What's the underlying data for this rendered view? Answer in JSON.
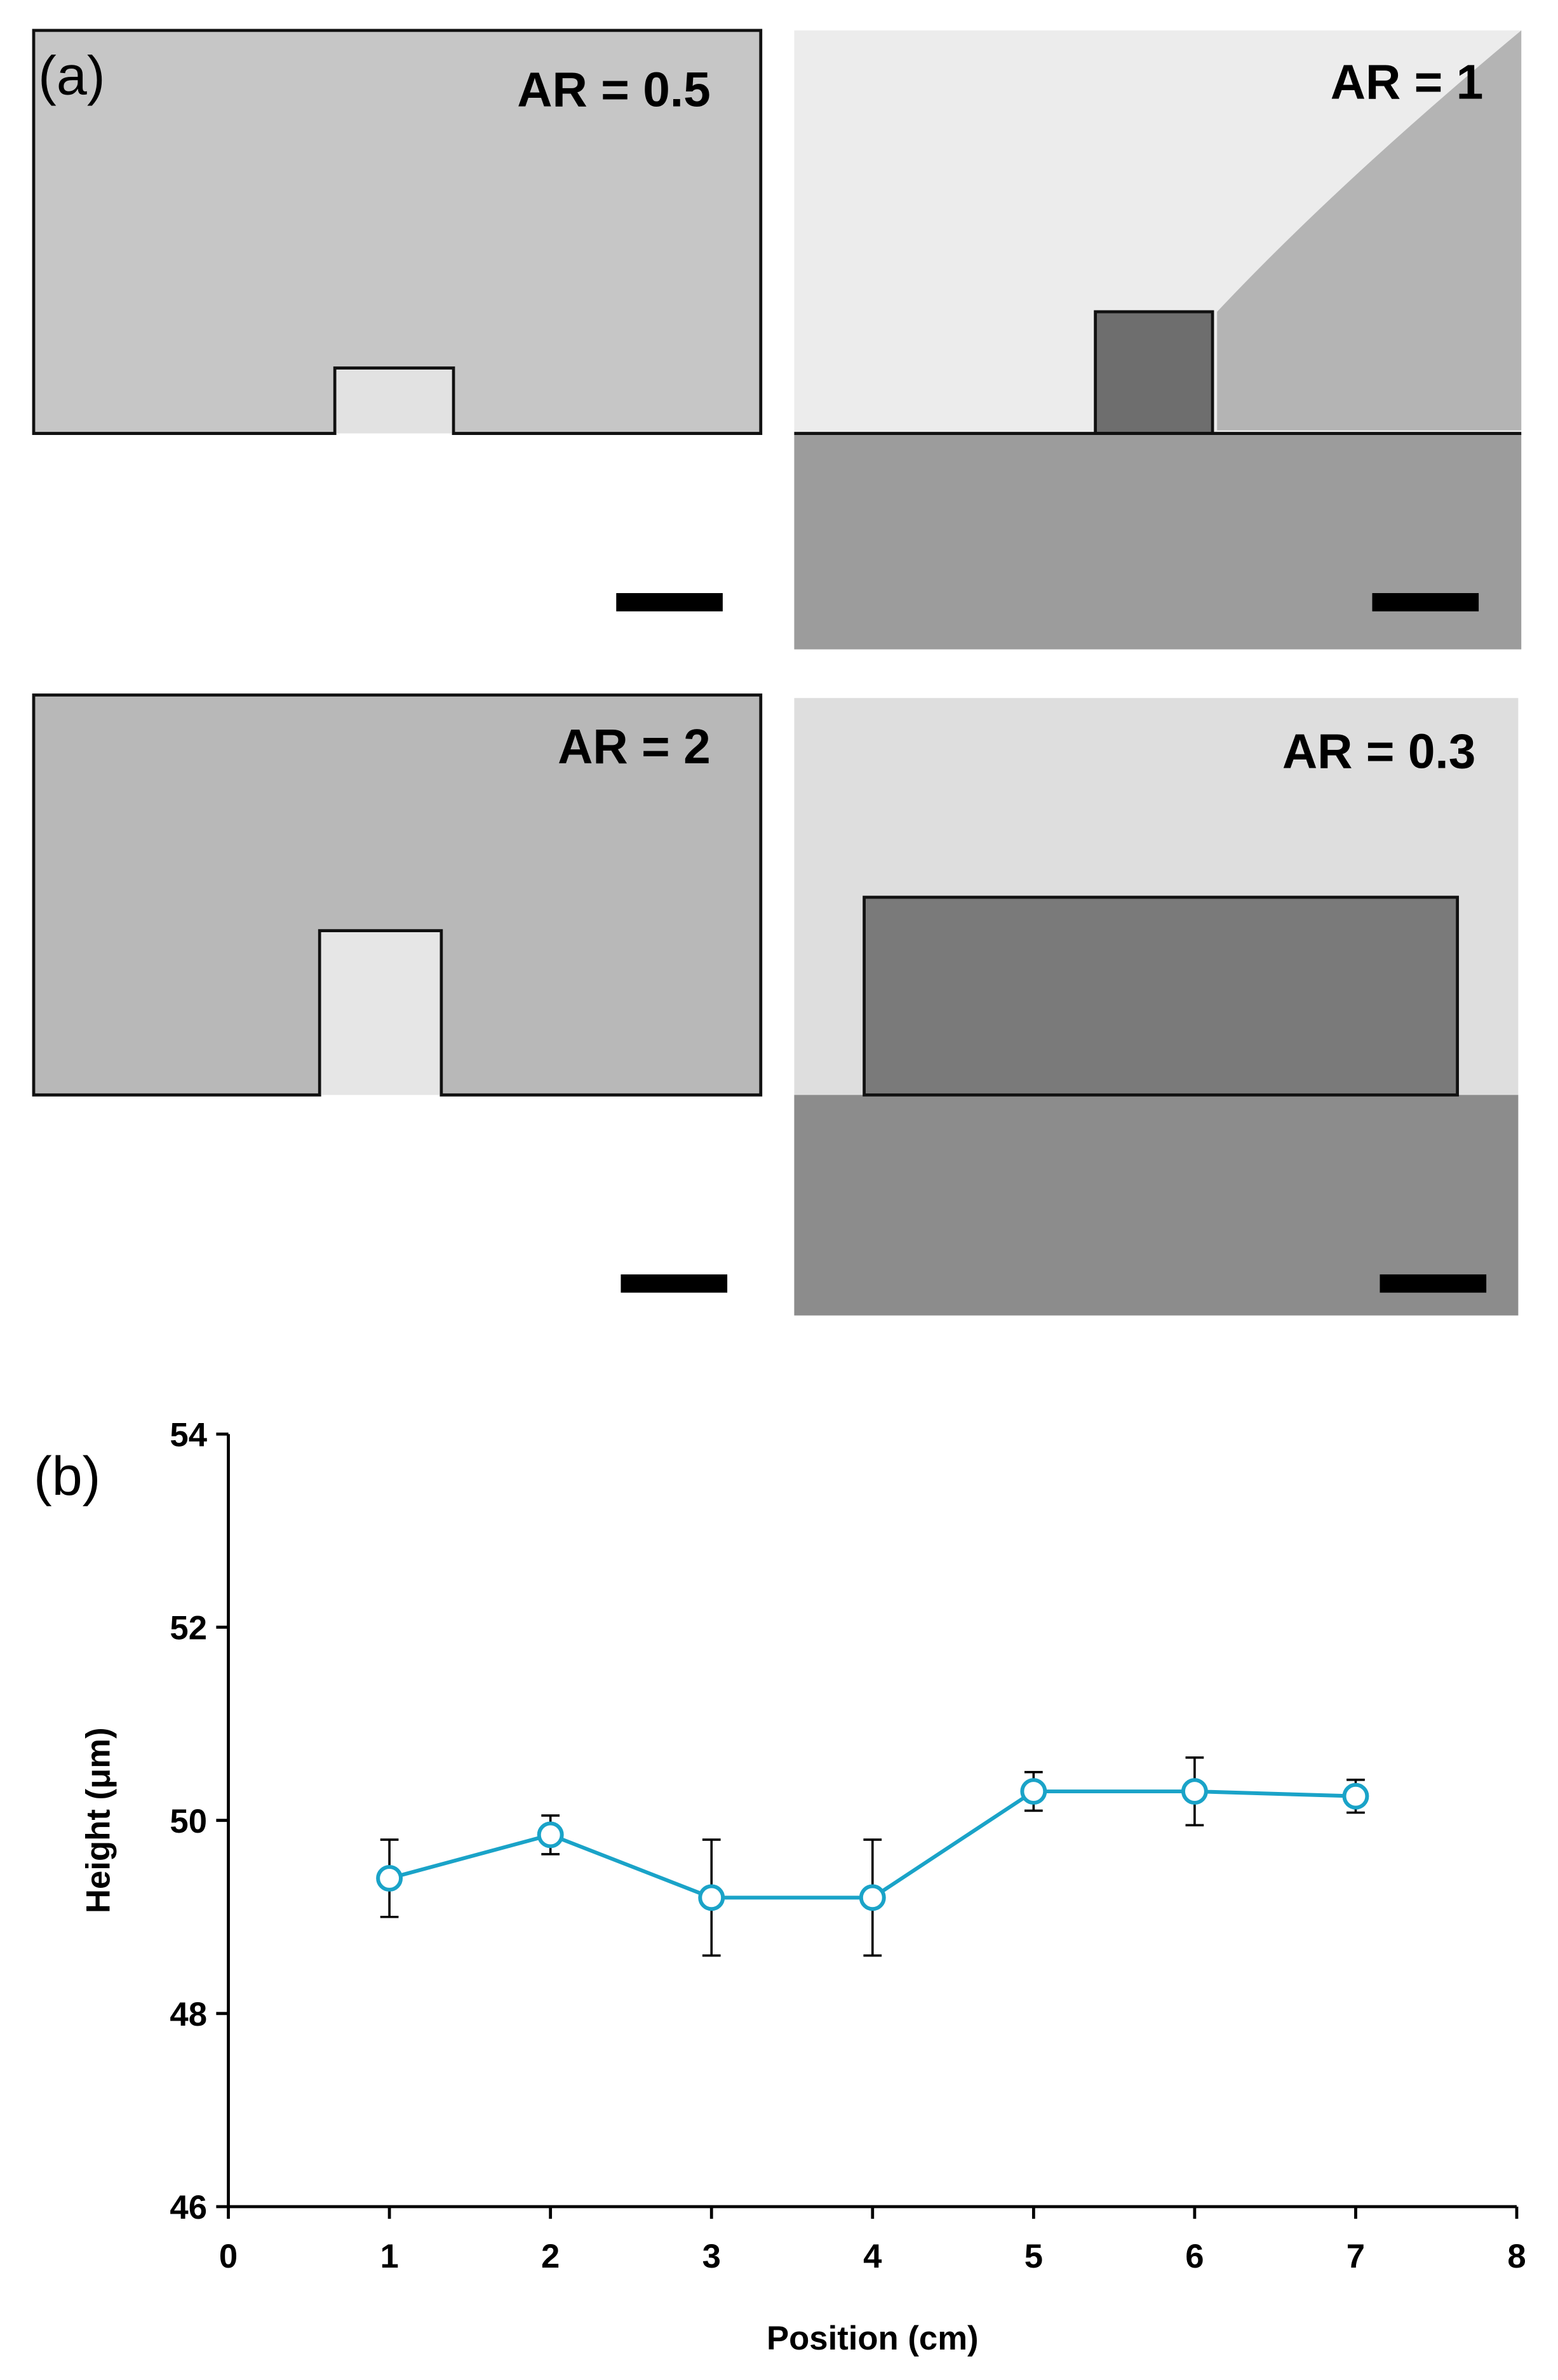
{
  "figure": {
    "panel_labels": [
      "(a)",
      "(b)"
    ],
    "image_labels": [
      "AR = 0.5",
      "AR = 1",
      "AR = 2",
      "AR = 0.3"
    ]
  },
  "chart_data": {
    "type": "line",
    "xlabel": "Position (cm)",
    "ylabel": "Height (μm)",
    "x": [
      1,
      2,
      3,
      4,
      5,
      6,
      7
    ],
    "series": [
      {
        "color": "#1aa3c8",
        "values": [
          49.4,
          49.85,
          49.2,
          49.2,
          50.3,
          50.3,
          50.25
        ],
        "errors": [
          0.4,
          0.2,
          0.6,
          0.6,
          0.2,
          0.35,
          0.17
        ]
      }
    ],
    "xlim": [
      0,
      8
    ],
    "xticks": [
      0,
      1,
      2,
      3,
      4,
      5,
      6,
      7,
      8
    ],
    "ylim": [
      46,
      54
    ],
    "yticks": [
      46,
      48,
      50,
      52,
      54
    ]
  }
}
